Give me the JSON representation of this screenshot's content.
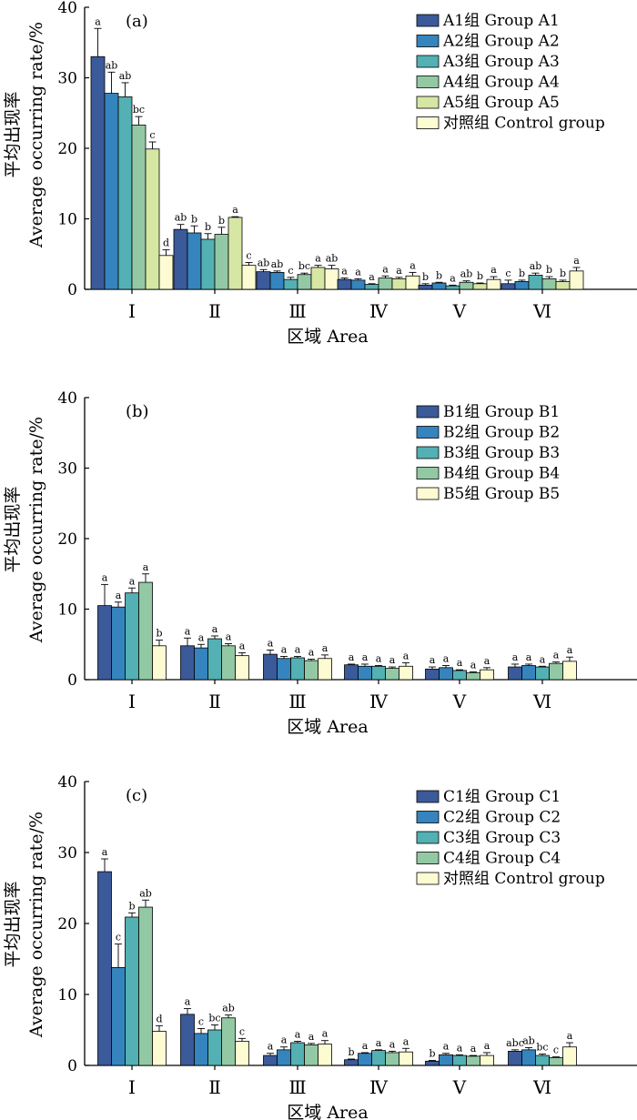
{
  "colors": {
    "A1": "#3b5a9a",
    "A2": "#3584bd",
    "A3": "#53b0b3",
    "A4": "#92c9a4",
    "A5": "#d6e7a4",
    "control": "#fdfbd2",
    "B1": "#3b5a9a",
    "B2": "#3584bd",
    "B3": "#53b0b3",
    "B4": "#92c9a4",
    "B5": "#fdfbd2",
    "C1": "#3b5a9a",
    "C2": "#3584bd",
    "C3": "#53b0b3",
    "C4": "#92c9a4"
  },
  "y_axis_label_cn": "平均出现率",
  "y_axis_label_en": "Average occurring rate/%",
  "x_axis_label": "区域 Area",
  "chart_data": [
    {
      "type": "bar",
      "panel_tag": "(a)",
      "categories": [
        "Ⅰ",
        "Ⅱ",
        "Ⅲ",
        "Ⅳ",
        "Ⅴ",
        "Ⅵ"
      ],
      "ylim": [
        0,
        40
      ],
      "yticks": [
        0,
        10,
        20,
        30,
        40
      ],
      "xlabel": "区域 Area",
      "ylabel": "平均出现率 Average occurring rate/%",
      "legend_position": "top-right",
      "series": [
        {
          "name": "A1组 Group A1",
          "color_key": "A1",
          "values": [
            33.0,
            8.5,
            2.5,
            1.4,
            0.6,
            0.8
          ],
          "errors": [
            4.0,
            0.7,
            0.3,
            0.2,
            0.2,
            0.5
          ],
          "letters": [
            "a",
            "ab",
            "ab",
            "a",
            "b",
            "c"
          ]
        },
        {
          "name": "A2组 Group A2",
          "color_key": "A2",
          "values": [
            27.8,
            8.0,
            2.4,
            1.3,
            0.9,
            1.1
          ],
          "errors": [
            3.0,
            1.0,
            0.2,
            0.2,
            0.1,
            0.2
          ],
          "letters": [
            "ab",
            "b",
            "ab",
            "a",
            "b",
            "b"
          ]
        },
        {
          "name": "A3组 Group A3",
          "color_key": "A3",
          "values": [
            27.3,
            7.1,
            1.4,
            0.7,
            0.5,
            2.0
          ],
          "errors": [
            2.0,
            0.8,
            0.3,
            0.1,
            0.1,
            0.3
          ],
          "letters": [
            "ab",
            "b",
            "c",
            "a",
            "a",
            "ab"
          ]
        },
        {
          "name": "A4组 Group A4",
          "color_key": "A4",
          "values": [
            23.3,
            7.8,
            2.1,
            1.6,
            1.0,
            1.5
          ],
          "errors": [
            1.2,
            1.0,
            0.2,
            0.3,
            0.2,
            0.3
          ],
          "letters": [
            "bc",
            "b",
            "bc",
            "a",
            "ab",
            "b"
          ]
        },
        {
          "name": "A5组 Group A5",
          "color_key": "A5",
          "values": [
            19.9,
            10.2,
            3.1,
            1.5,
            0.8,
            1.1
          ],
          "errors": [
            1.0,
            0.1,
            0.3,
            0.2,
            0.1,
            0.2
          ],
          "letters": [
            "c",
            "a",
            "a",
            "a",
            "b",
            "b"
          ]
        },
        {
          "name": "对照组 Control group",
          "color_key": "control",
          "values": [
            4.8,
            3.4,
            2.9,
            1.9,
            1.4,
            2.6
          ],
          "errors": [
            0.8,
            0.4,
            0.5,
            0.5,
            0.4,
            0.5
          ],
          "letters": [
            "d",
            "c",
            "ab",
            "a",
            "a",
            "a"
          ]
        }
      ]
    },
    {
      "type": "bar",
      "panel_tag": "(b)",
      "categories": [
        "Ⅰ",
        "Ⅱ",
        "Ⅲ",
        "Ⅳ",
        "Ⅴ",
        "Ⅵ"
      ],
      "ylim": [
        0,
        40
      ],
      "yticks": [
        0,
        10,
        20,
        30,
        40
      ],
      "xlabel": "区域 Area",
      "ylabel": "平均出现率 Average occurring rate/%",
      "legend_position": "top-right",
      "series": [
        {
          "name": "B1组 Group B1",
          "color_key": "B1",
          "values": [
            10.5,
            4.8,
            3.6,
            2.1,
            1.5,
            1.8
          ],
          "errors": [
            3.0,
            1.1,
            0.6,
            0.1,
            0.3,
            0.4
          ],
          "letters": [
            "a",
            "a",
            "a",
            "a",
            "a",
            "a"
          ]
        },
        {
          "name": "B2组 Group B2",
          "color_key": "B2",
          "values": [
            10.3,
            4.5,
            3.0,
            1.9,
            1.7,
            2.0
          ],
          "errors": [
            0.7,
            0.5,
            0.3,
            0.3,
            0.3,
            0.2
          ],
          "letters": [
            "a",
            "a",
            "a",
            "a",
            "a",
            "a"
          ]
        },
        {
          "name": "B3组 Group B3",
          "color_key": "B3",
          "values": [
            12.3,
            5.8,
            3.1,
            1.9,
            1.3,
            1.8
          ],
          "errors": [
            0.7,
            0.4,
            0.2,
            0.1,
            0.1,
            0.1
          ],
          "letters": [
            "a",
            "a",
            "a",
            "a",
            "a",
            "a"
          ]
        },
        {
          "name": "B4组 Group B4",
          "color_key": "B4",
          "values": [
            13.8,
            4.8,
            2.7,
            1.6,
            1.0,
            2.3
          ],
          "errors": [
            1.2,
            0.3,
            0.2,
            0.2,
            0.1,
            0.2
          ],
          "letters": [
            "a",
            "a",
            "a",
            "a",
            "a",
            "a"
          ]
        },
        {
          "name": "B5组 Group B5",
          "color_key": "B5",
          "values": [
            4.8,
            3.4,
            3.0,
            1.9,
            1.4,
            2.6
          ],
          "errors": [
            0.8,
            0.4,
            0.5,
            0.5,
            0.3,
            0.6
          ],
          "letters": [
            "b",
            "a",
            "a",
            "a",
            "a",
            "a"
          ]
        }
      ]
    },
    {
      "type": "bar",
      "panel_tag": "(c)",
      "categories": [
        "Ⅰ",
        "Ⅱ",
        "Ⅲ",
        "Ⅳ",
        "Ⅴ",
        "Ⅵ"
      ],
      "ylim": [
        0,
        40
      ],
      "yticks": [
        0,
        10,
        20,
        30,
        40
      ],
      "xlabel": "区域 Area",
      "ylabel": "平均出现率 Average occurring rate/%",
      "legend_position": "top-right",
      "series": [
        {
          "name": "C1组 Group C1",
          "color_key": "C1",
          "values": [
            27.3,
            7.2,
            1.4,
            0.8,
            0.6,
            2.0
          ],
          "errors": [
            1.8,
            0.8,
            0.3,
            0.1,
            0.1,
            0.2
          ],
          "letters": [
            "a",
            "a",
            "a",
            "b",
            "b",
            "abc"
          ]
        },
        {
          "name": "C2组 Group C2",
          "color_key": "C2",
          "values": [
            13.8,
            4.5,
            2.2,
            1.7,
            1.5,
            2.2
          ],
          "errors": [
            3.3,
            0.7,
            0.4,
            0.1,
            0.2,
            0.3
          ],
          "letters": [
            "c",
            "c",
            "a",
            "a",
            "a",
            "ab"
          ]
        },
        {
          "name": "C3组 Group C3",
          "color_key": "C3",
          "values": [
            20.9,
            5.0,
            3.2,
            2.1,
            1.4,
            1.4
          ],
          "errors": [
            0.6,
            0.7,
            0.2,
            0.1,
            0.1,
            0.2
          ],
          "letters": [
            "b",
            "bc",
            "a",
            "a",
            "a",
            "bc"
          ]
        },
        {
          "name": "C4组 Group C4",
          "color_key": "C4",
          "values": [
            22.3,
            6.7,
            2.9,
            1.8,
            1.3,
            1.1
          ],
          "errors": [
            1.0,
            0.4,
            0.2,
            0.2,
            0.1,
            0.1
          ],
          "letters": [
            "ab",
            "ab",
            "a",
            "a",
            "a",
            "c"
          ]
        },
        {
          "name": "对照组 Control group",
          "color_key": "control",
          "values": [
            4.8,
            3.4,
            3.0,
            1.9,
            1.4,
            2.6
          ],
          "errors": [
            0.8,
            0.4,
            0.5,
            0.5,
            0.4,
            0.6
          ],
          "letters": [
            "d",
            "c",
            "a",
            "a",
            "a",
            "a"
          ]
        }
      ]
    }
  ]
}
